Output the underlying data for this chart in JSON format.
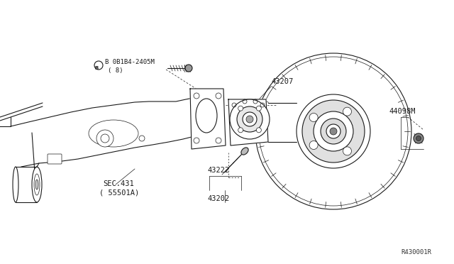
{
  "bg_color": "#ffffff",
  "line_color": "#1a1a1a",
  "fig_width": 6.4,
  "fig_height": 3.72,
  "dpi": 100,
  "labels": {
    "bolt_label": "B 0B1B4-2405M",
    "bolt_sub": "( 8)",
    "part_43207": "43207",
    "part_44098M": "44098M",
    "part_43222": "43222",
    "part_43202": "43202",
    "sec_ref": "SEC.431",
    "sec_sub": "( 55501A)",
    "ref_code": "R430001R"
  },
  "font_size": 7.5,
  "small_font": 6.5
}
